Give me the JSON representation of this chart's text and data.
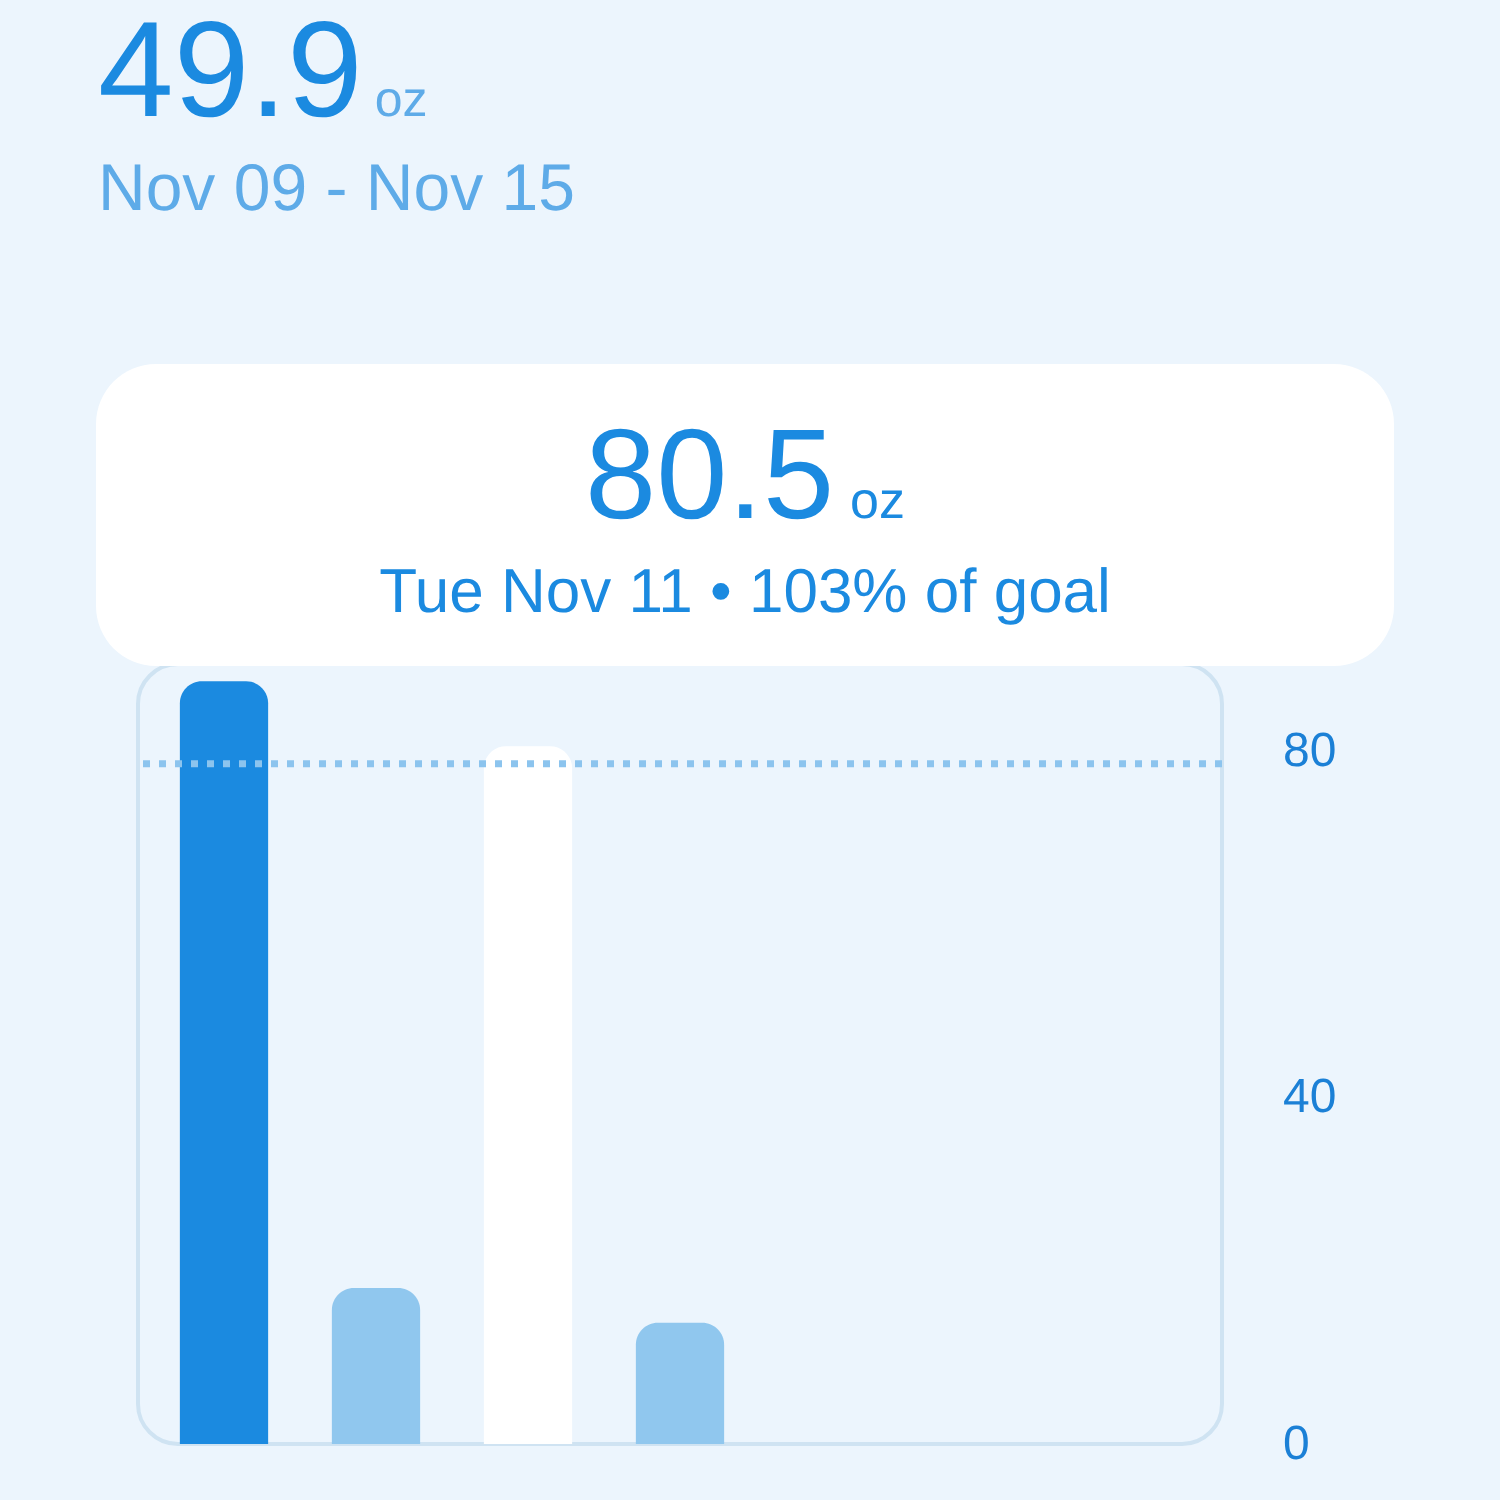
{
  "chart_data": {
    "type": "bar",
    "title": "49.9oz",
    "subtitle": "Nov 09 - Nov 15",
    "categories": [
      null,
      null,
      null,
      null,
      null,
      null,
      null
    ],
    "values": [
      88,
      18,
      80.5,
      14,
      null,
      null,
      null
    ],
    "colors": [
      "#1b8ae0",
      "#90c7ee",
      "#ffffff",
      "#90c7ee",
      "#90c7ee",
      "#90c7ee",
      "#90c7ee"
    ],
    "ylim": [
      0,
      90
    ],
    "yticks": [
      0,
      40,
      80
    ],
    "grid": false,
    "ref_lines": [
      {
        "axis": "y",
        "value": 78.5,
        "color": "#8cc4ee",
        "line_style": "dotted"
      }
    ],
    "annotations": [
      "80.5oz",
      "Tue Nov 11 • 103% of goal"
    ]
  }
}
